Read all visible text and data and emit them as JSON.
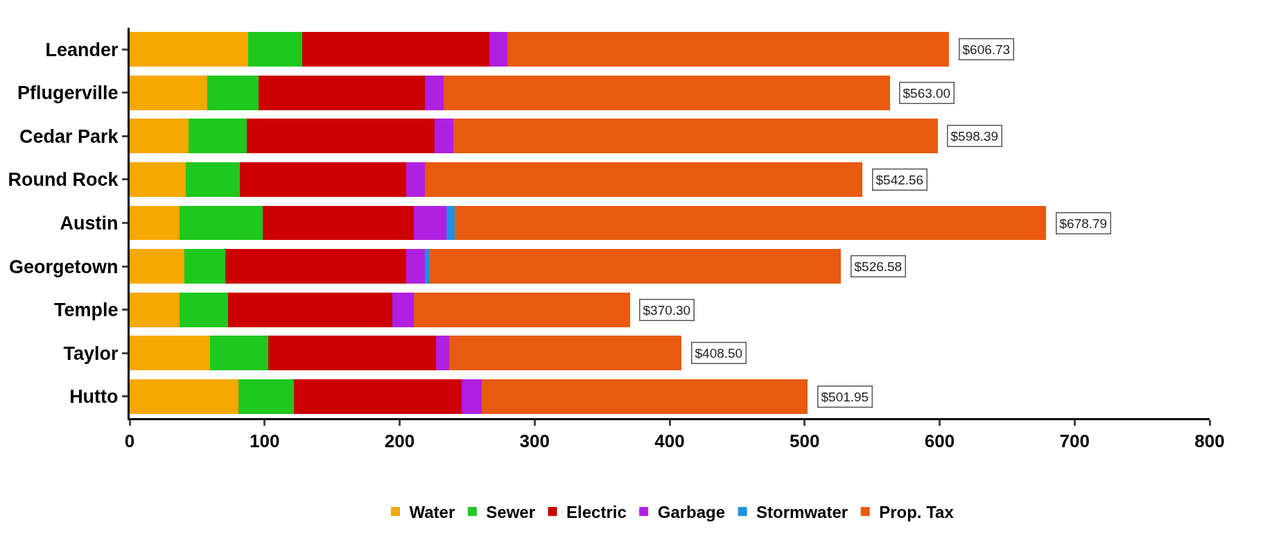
{
  "chart_data": {
    "type": "bar",
    "orientation": "horizontal",
    "stacked": true,
    "categories": [
      "Leander",
      "Pflugerville",
      "Cedar Park",
      "Round Rock",
      "Austin",
      "Georgetown",
      "Temple",
      "Taylor",
      "Hutto"
    ],
    "series": [
      {
        "name": "Water",
        "color": "#f5a800",
        "values": [
          88,
          58,
          44,
          42,
          37,
          41,
          37,
          60,
          81
        ]
      },
      {
        "name": "Sewer",
        "color": "#1ec81e",
        "values": [
          40,
          38,
          43,
          40,
          62,
          30,
          36,
          43,
          41
        ]
      },
      {
        "name": "Electric",
        "color": "#cc0000",
        "values": [
          139,
          123,
          139,
          123,
          112,
          134,
          122,
          124,
          124
        ]
      },
      {
        "name": "Garbage",
        "color": "#b020e0",
        "values": [
          13,
          14,
          14,
          14,
          24,
          14,
          16,
          10,
          15
        ]
      },
      {
        "name": "Stormwater",
        "color": "#2090e0",
        "values": [
          0,
          0,
          0,
          0,
          6,
          3,
          0,
          0,
          0
        ]
      },
      {
        "name": "Prop. Tax",
        "color": "#e85a10",
        "values": [
          326.73,
          330,
          358.39,
          323.56,
          437.79,
          304.58,
          159.3,
          171.5,
          240.95
        ]
      }
    ],
    "totals": [
      "$606.73",
      "$563.00",
      "$598.39",
      "$542.56",
      "$678.79",
      "$526.58",
      "$370.30",
      "$408.50",
      "$501.95"
    ],
    "xlim": [
      0,
      800
    ],
    "xticks": [
      0,
      100,
      200,
      300,
      400,
      500,
      600,
      700,
      800
    ],
    "legend": "bottom"
  }
}
